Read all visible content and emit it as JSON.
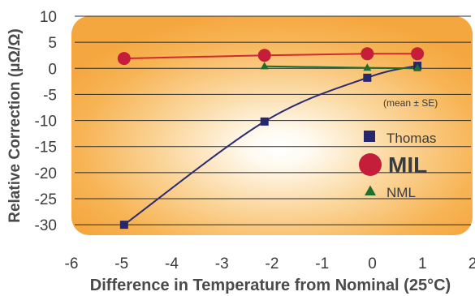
{
  "chart_data": {
    "type": "line",
    "xlabel": "Difference in Temperature from Nominal (25°C)",
    "ylabel": "Relative Correction (μΩ/Ω)",
    "xlim": [
      -6,
      2
    ],
    "ylim": [
      -32,
      10
    ],
    "x_ticks": [
      -6,
      -5,
      -4,
      -3,
      -2,
      -1,
      0,
      1,
      2
    ],
    "y_ticks": [
      10,
      5,
      0,
      -5,
      -10,
      -15,
      -20,
      -25,
      -30
    ],
    "x_tick_labels": [
      "-6",
      "-5",
      "-4",
      "-3",
      "-2",
      "-1",
      "0",
      "1",
      "2"
    ],
    "y_tick_labels": [
      "10",
      "5",
      "0",
      "-5",
      "-10",
      "-15",
      "-20",
      "-25",
      "-30"
    ],
    "grid": "horizontal",
    "annotation": "(mean ± SE)",
    "legend_position": "center-right",
    "series": [
      {
        "name": "Thomas",
        "marker": "square",
        "color": "#27276e",
        "line_color": "#2b2b72",
        "x": [
          -4.95,
          -2.15,
          -0.1,
          0.9
        ],
        "y": [
          -30.0,
          -10.2,
          -1.8,
          0.5
        ]
      },
      {
        "name": "MIL",
        "marker": "circle",
        "color": "#c41e3a",
        "line_color": "#d22b2b",
        "x": [
          -4.95,
          -2.15,
          -0.1,
          0.9
        ],
        "y": [
          1.9,
          2.5,
          2.8,
          2.8
        ]
      },
      {
        "name": "NML",
        "marker": "triangle",
        "color": "#1e6e2e",
        "line_color": "#1e6e2e",
        "x": [
          -2.15,
          -0.1,
          0.9
        ],
        "y": [
          0.4,
          0.1,
          0.0
        ]
      }
    ]
  }
}
